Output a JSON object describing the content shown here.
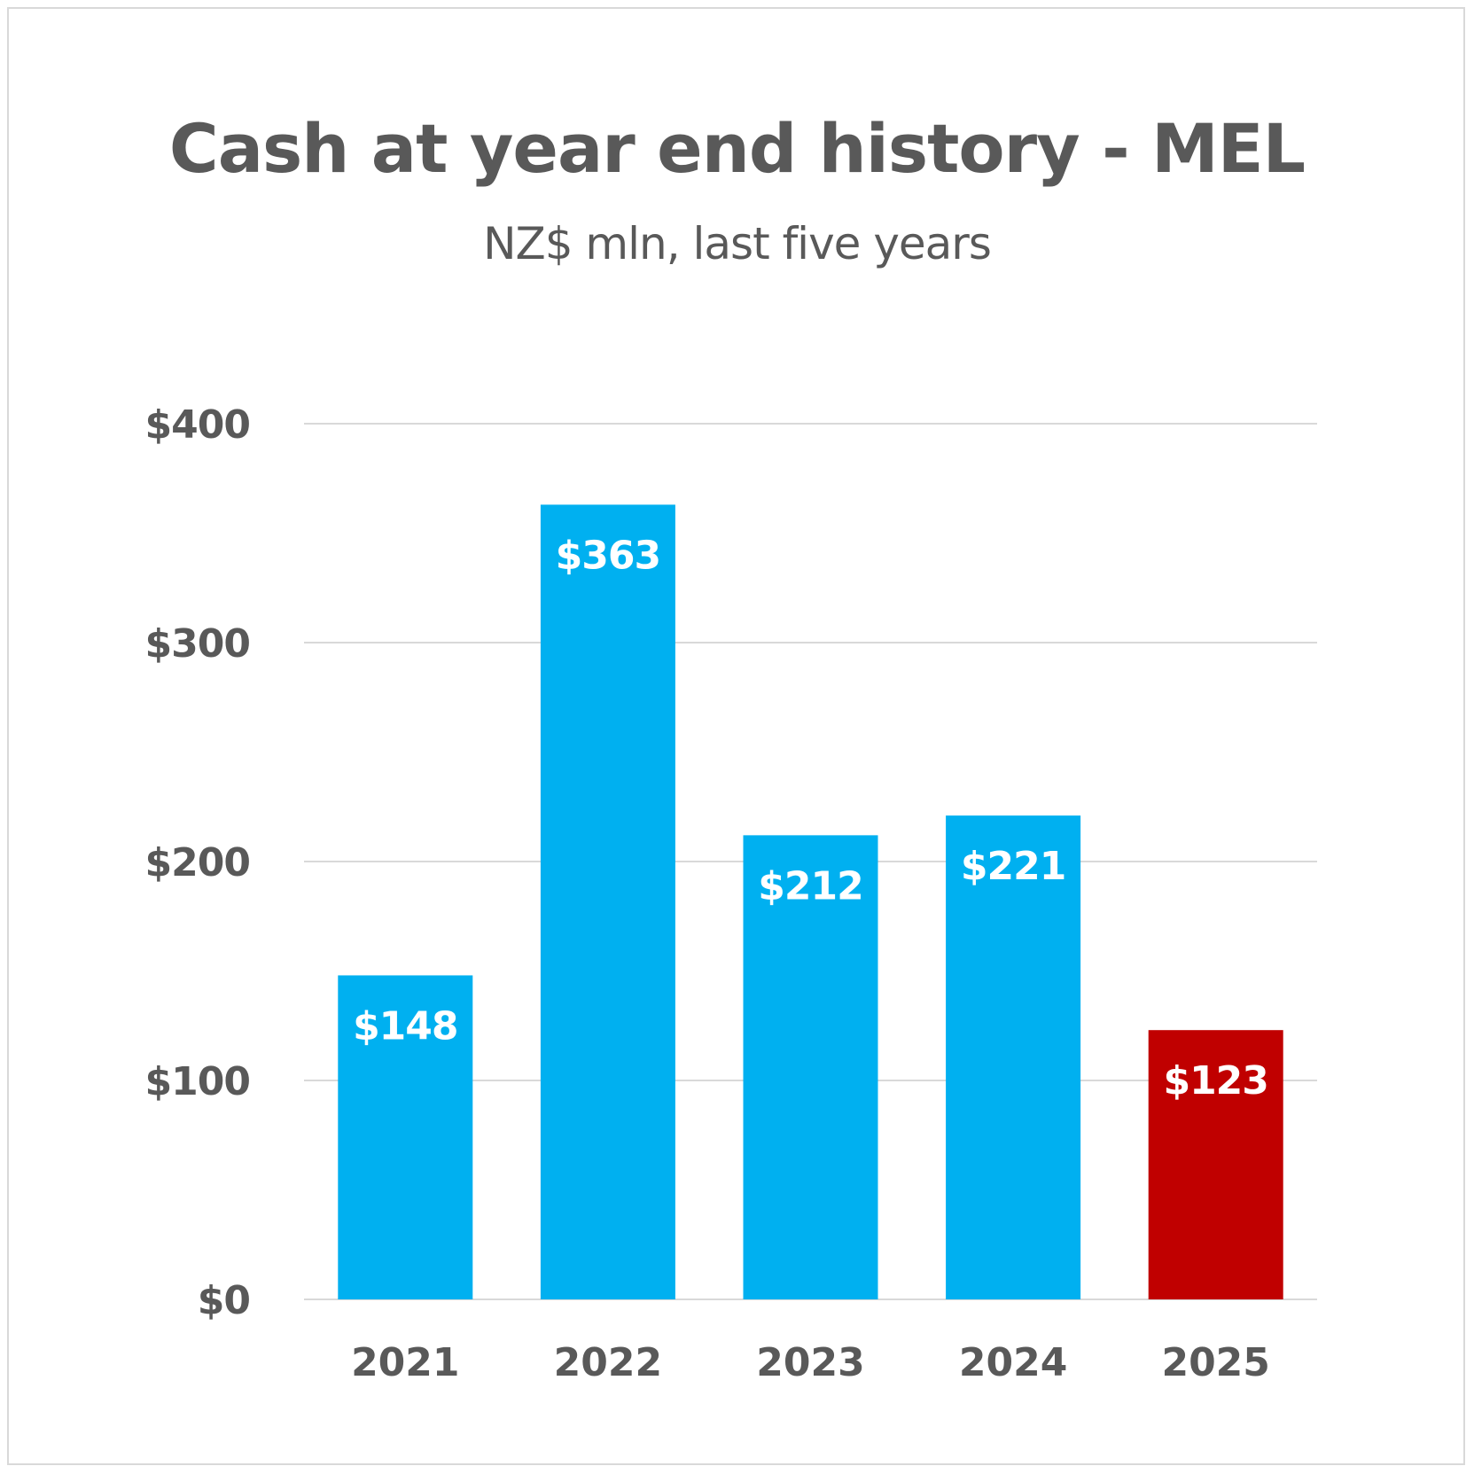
{
  "chart_data": {
    "type": "bar",
    "title": "Cash at year end history - MEL",
    "subtitle": "NZ$ mln, last five years",
    "categories": [
      "2021",
      "2022",
      "2023",
      "2024",
      "2025"
    ],
    "values": [
      148,
      363,
      212,
      221,
      123
    ],
    "data_labels": [
      "$148",
      "$363",
      "$212",
      "$221",
      "$123"
    ],
    "bar_colors": [
      "#00b0f0",
      "#00b0f0",
      "#00b0f0",
      "#00b0f0",
      "#c00000"
    ],
    "ylim": [
      0,
      400
    ],
    "yticks": [
      0,
      100,
      200,
      300,
      400
    ],
    "ytick_labels": [
      "$0",
      "$100",
      "$200",
      "$300",
      "$400"
    ],
    "grid": true,
    "legend": "none",
    "gridline_color": "#d9d9d9",
    "text_color": "#595959"
  }
}
